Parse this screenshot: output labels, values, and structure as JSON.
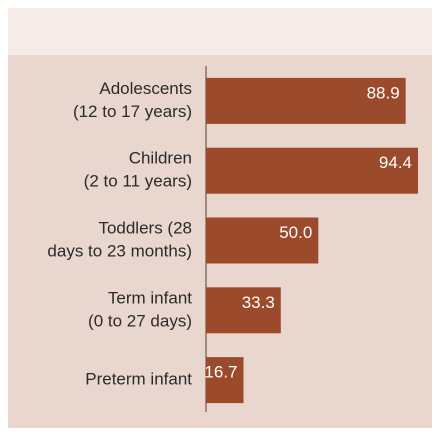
{
  "chart_data": {
    "type": "bar",
    "orientation": "horizontal",
    "categories": [
      [
        "Adolescents",
        "(12 to 17 years)"
      ],
      [
        "Children",
        "(2 to 11 years)"
      ],
      [
        "Toddlers (28",
        "days to 23 months)"
      ],
      [
        "Term infant",
        "(0 to 27 days)"
      ],
      [
        "Preterm infant"
      ]
    ],
    "values": [
      88.9,
      94.4,
      50.0,
      33.3,
      16.7
    ],
    "value_labels": [
      "88.9",
      "94.4",
      "50.0",
      "33.3",
      "16.7"
    ],
    "color": "#9b4a2c",
    "xlim": [
      0,
      100
    ]
  }
}
